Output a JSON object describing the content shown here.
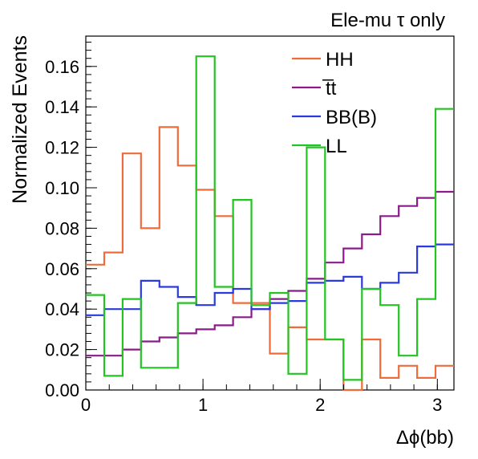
{
  "chart_data": {
    "type": "line",
    "title": "Ele-mu τ only",
    "xlabel": "Δϕ(bb)",
    "ylabel": "Normalized Events",
    "xlim": [
      0,
      3.1416
    ],
    "ylim": [
      0,
      0.175
    ],
    "x_ticks": [
      0,
      1,
      2,
      3
    ],
    "x_tick_labels": [
      "0",
      "1",
      "2",
      "3"
    ],
    "y_ticks": [
      0,
      0.02,
      0.04,
      0.06,
      0.08,
      0.1,
      0.12,
      0.14,
      0.16
    ],
    "y_tick_labels": [
      "0.00",
      "0.02",
      "0.04",
      "0.06",
      "0.08",
      "0.10",
      "0.12",
      "0.14",
      "0.16"
    ],
    "bin_edges": [
      0,
      0.1571,
      0.3142,
      0.4712,
      0.6283,
      0.7854,
      0.9425,
      1.0996,
      1.2566,
      1.4137,
      1.5708,
      1.7279,
      1.885,
      2.042,
      2.1991,
      2.3562,
      2.5133,
      2.6704,
      2.8274,
      2.9845,
      3.1416
    ],
    "legend_position": "top-right",
    "series": [
      {
        "name": "HH",
        "color": "#f06a3c",
        "values": [
          0.062,
          0.068,
          0.117,
          0.08,
          0.13,
          0.111,
          0.099,
          0.086,
          0.043,
          0.043,
          0.018,
          0.031,
          0.025,
          0.025,
          0.0,
          0.025,
          0.006,
          0.012,
          0.006,
          0.012
        ]
      },
      {
        "name": "t̅t",
        "color": "#8b1a8b",
        "values": [
          0.017,
          0.017,
          0.02,
          0.024,
          0.026,
          0.028,
          0.03,
          0.032,
          0.036,
          0.04,
          0.045,
          0.049,
          0.055,
          0.063,
          0.07,
          0.077,
          0.086,
          0.091,
          0.095,
          0.098
        ]
      },
      {
        "name": "BB(B)",
        "color": "#2a3ae0",
        "values": [
          0.037,
          0.04,
          0.04,
          0.054,
          0.051,
          0.046,
          0.042,
          0.048,
          0.05,
          0.04,
          0.043,
          0.044,
          0.053,
          0.054,
          0.056,
          0.05,
          0.053,
          0.058,
          0.071,
          0.072
        ]
      },
      {
        "name": "LL",
        "color": "#22c422",
        "values": [
          0.047,
          0.007,
          0.045,
          0.011,
          0.011,
          0.043,
          0.165,
          0.051,
          0.094,
          0.042,
          0.048,
          0.008,
          0.12,
          0.025,
          0.005,
          0.05,
          0.042,
          0.017,
          0.045,
          0.139
        ]
      }
    ]
  }
}
